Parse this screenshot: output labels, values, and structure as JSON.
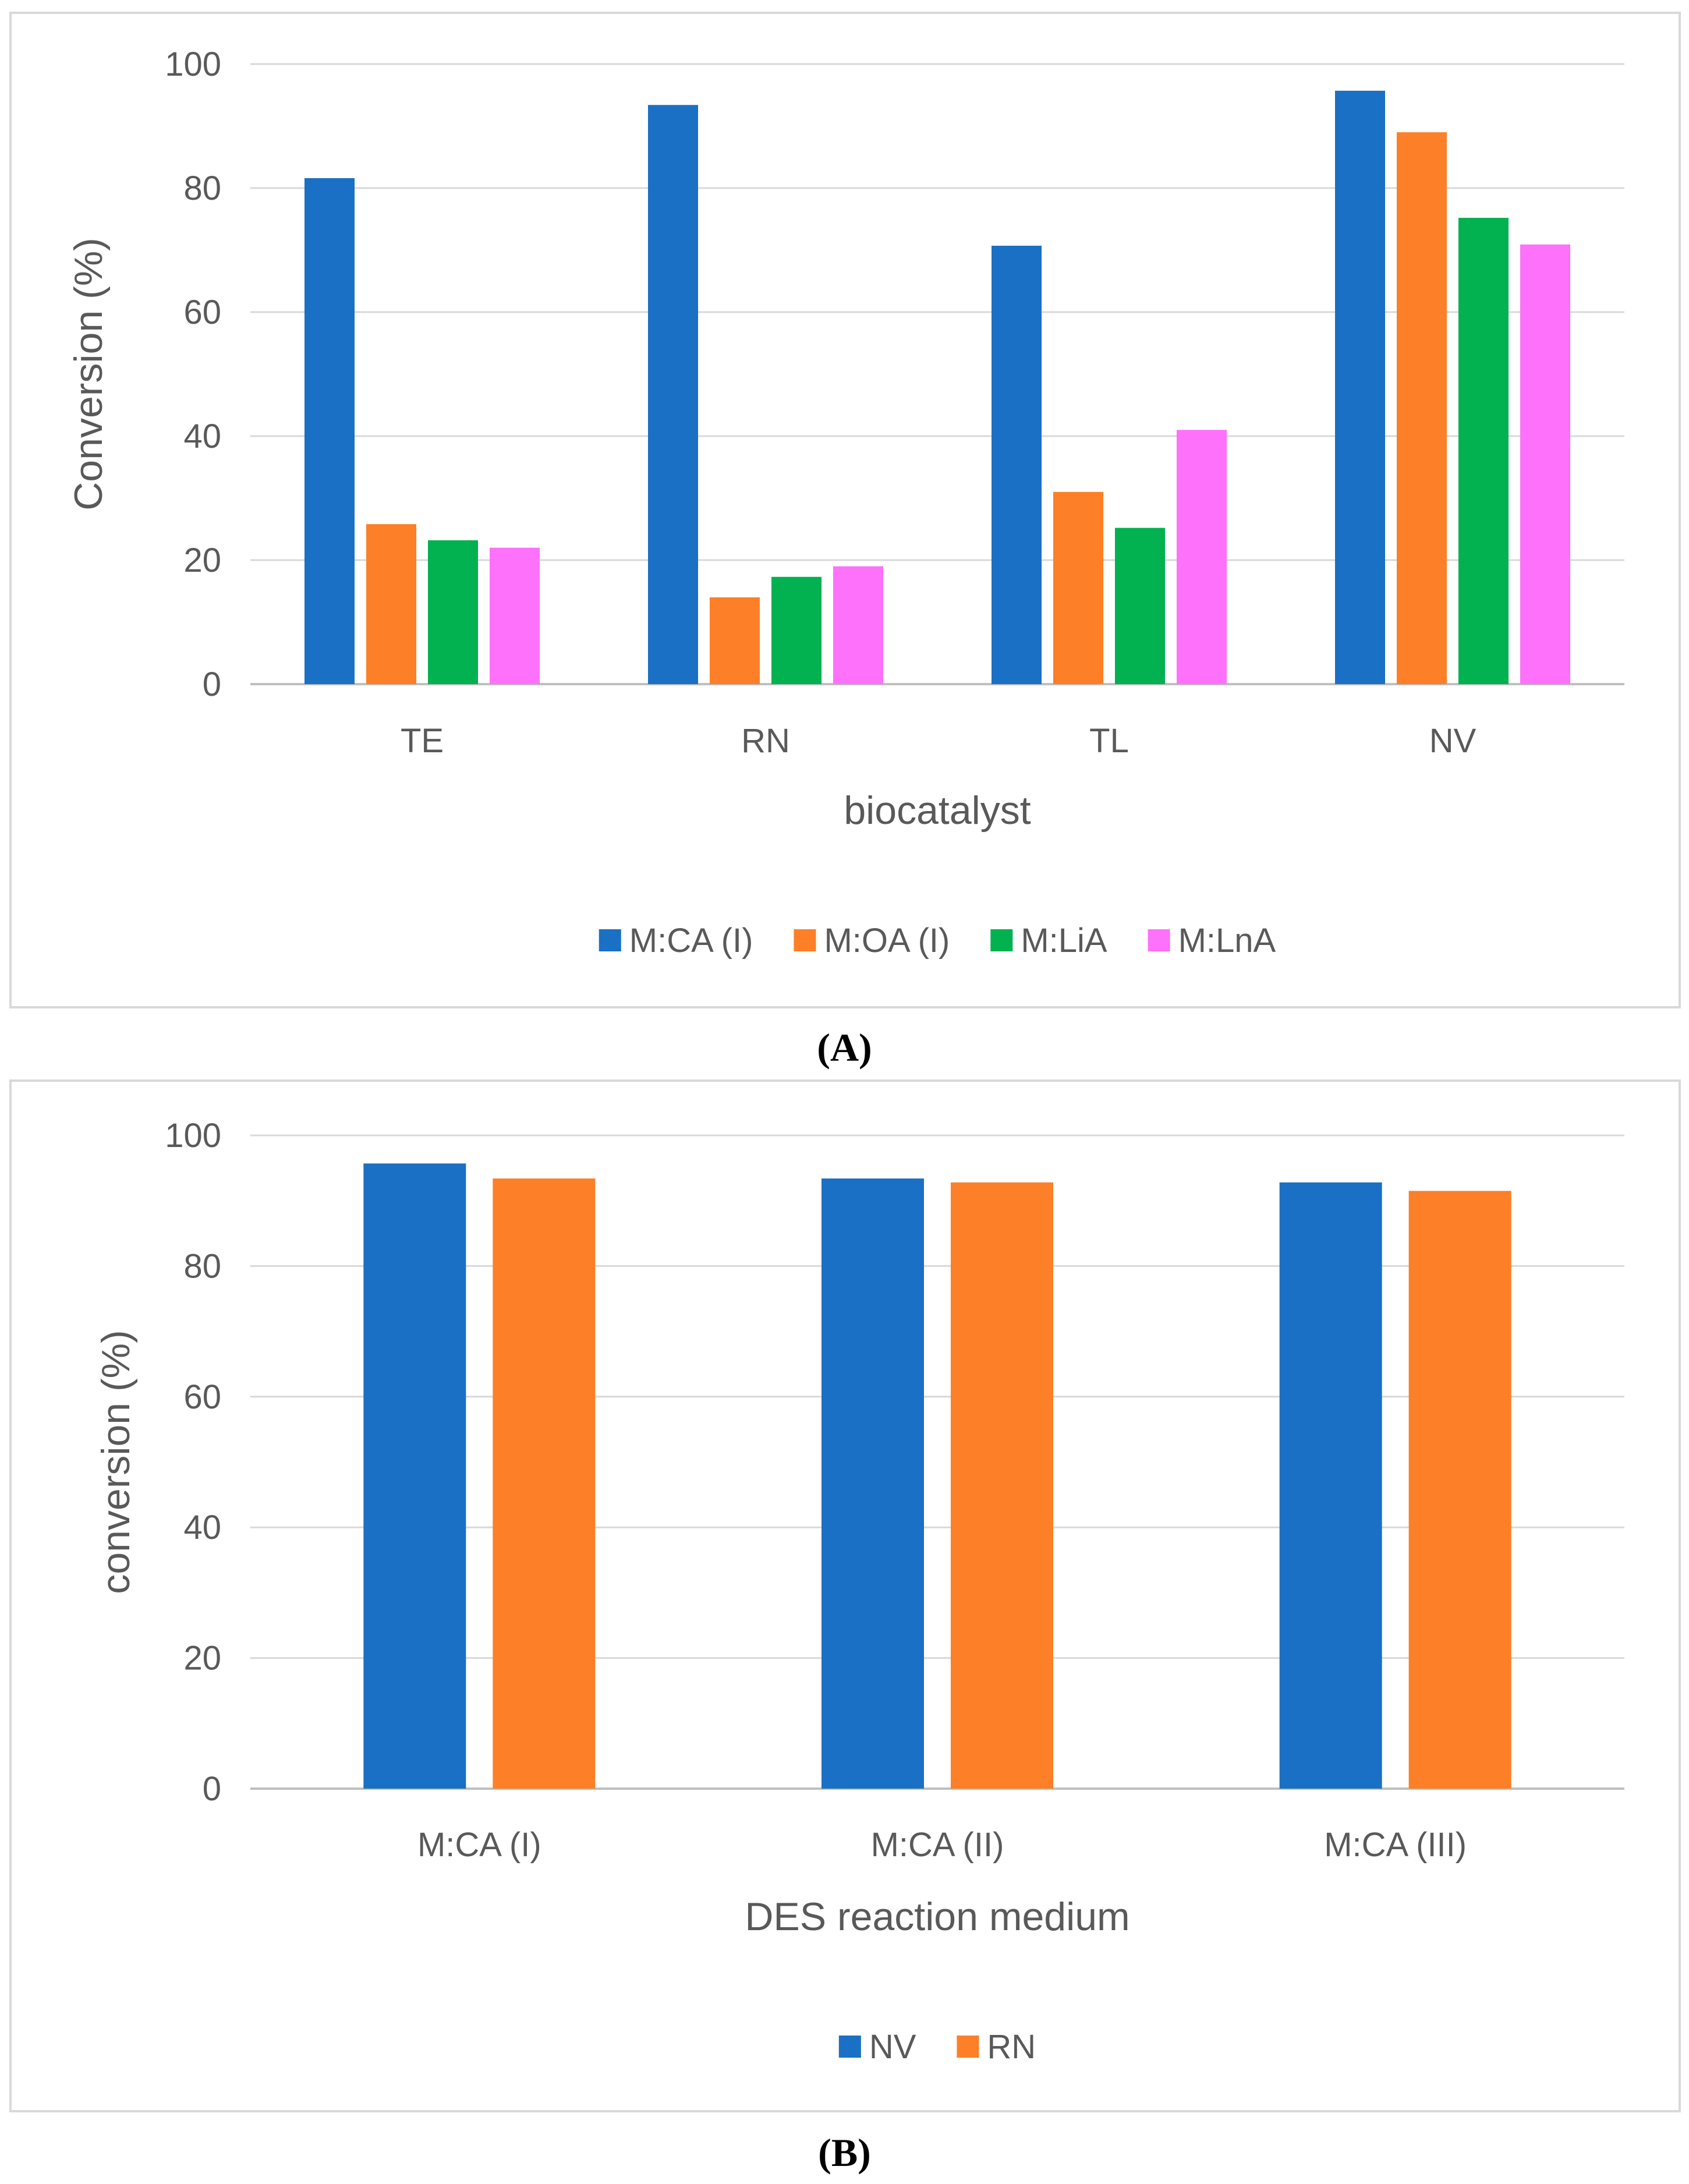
{
  "panels": {
    "a": {
      "caption_open": "(",
      "caption_letter": "A",
      "caption_close": ")"
    },
    "b": {
      "caption_open": "(",
      "caption_letter": "B",
      "caption_close": ")"
    }
  },
  "chart_data": [
    {
      "type": "bar",
      "title": "",
      "xlabel": "biocatalyst",
      "ylabel": "Conversion (%)",
      "ylim": [
        0,
        100
      ],
      "yticks": [
        0,
        20,
        40,
        60,
        80,
        100
      ],
      "grid": true,
      "legend_position": "bottom",
      "categories": [
        "TE",
        "RN",
        "TL",
        "NV"
      ],
      "series": [
        {
          "name": "M:CA (I)",
          "color": "#1a70c4",
          "values": [
            81.6,
            93.4,
            70.7,
            95.7
          ]
        },
        {
          "name": "M:OA (I)",
          "color": "#fd7f27",
          "values": [
            25.8,
            14.0,
            31.0,
            89.0
          ]
        },
        {
          "name": "M:LiA",
          "color": "#02b14f",
          "values": [
            23.2,
            17.3,
            25.2,
            75.2
          ]
        },
        {
          "name": "M:LnA",
          "color": "#fe71fa",
          "values": [
            22.0,
            19.0,
            41.0,
            70.9
          ]
        }
      ]
    },
    {
      "type": "bar",
      "title": "",
      "xlabel": "DES reaction medium",
      "ylabel": "conversion (%)",
      "ylim": [
        0,
        100
      ],
      "yticks": [
        0,
        20,
        40,
        60,
        80,
        100
      ],
      "grid": true,
      "legend_position": "bottom",
      "categories": [
        "M:CA (I)",
        "M:CA (II)",
        "M:CA (III)"
      ],
      "series": [
        {
          "name": "NV",
          "color": "#1a70c4",
          "values": [
            95.7,
            93.4,
            92.8
          ]
        },
        {
          "name": "RN",
          "color": "#fd7f27",
          "values": [
            93.4,
            92.8,
            91.5
          ]
        }
      ]
    }
  ]
}
